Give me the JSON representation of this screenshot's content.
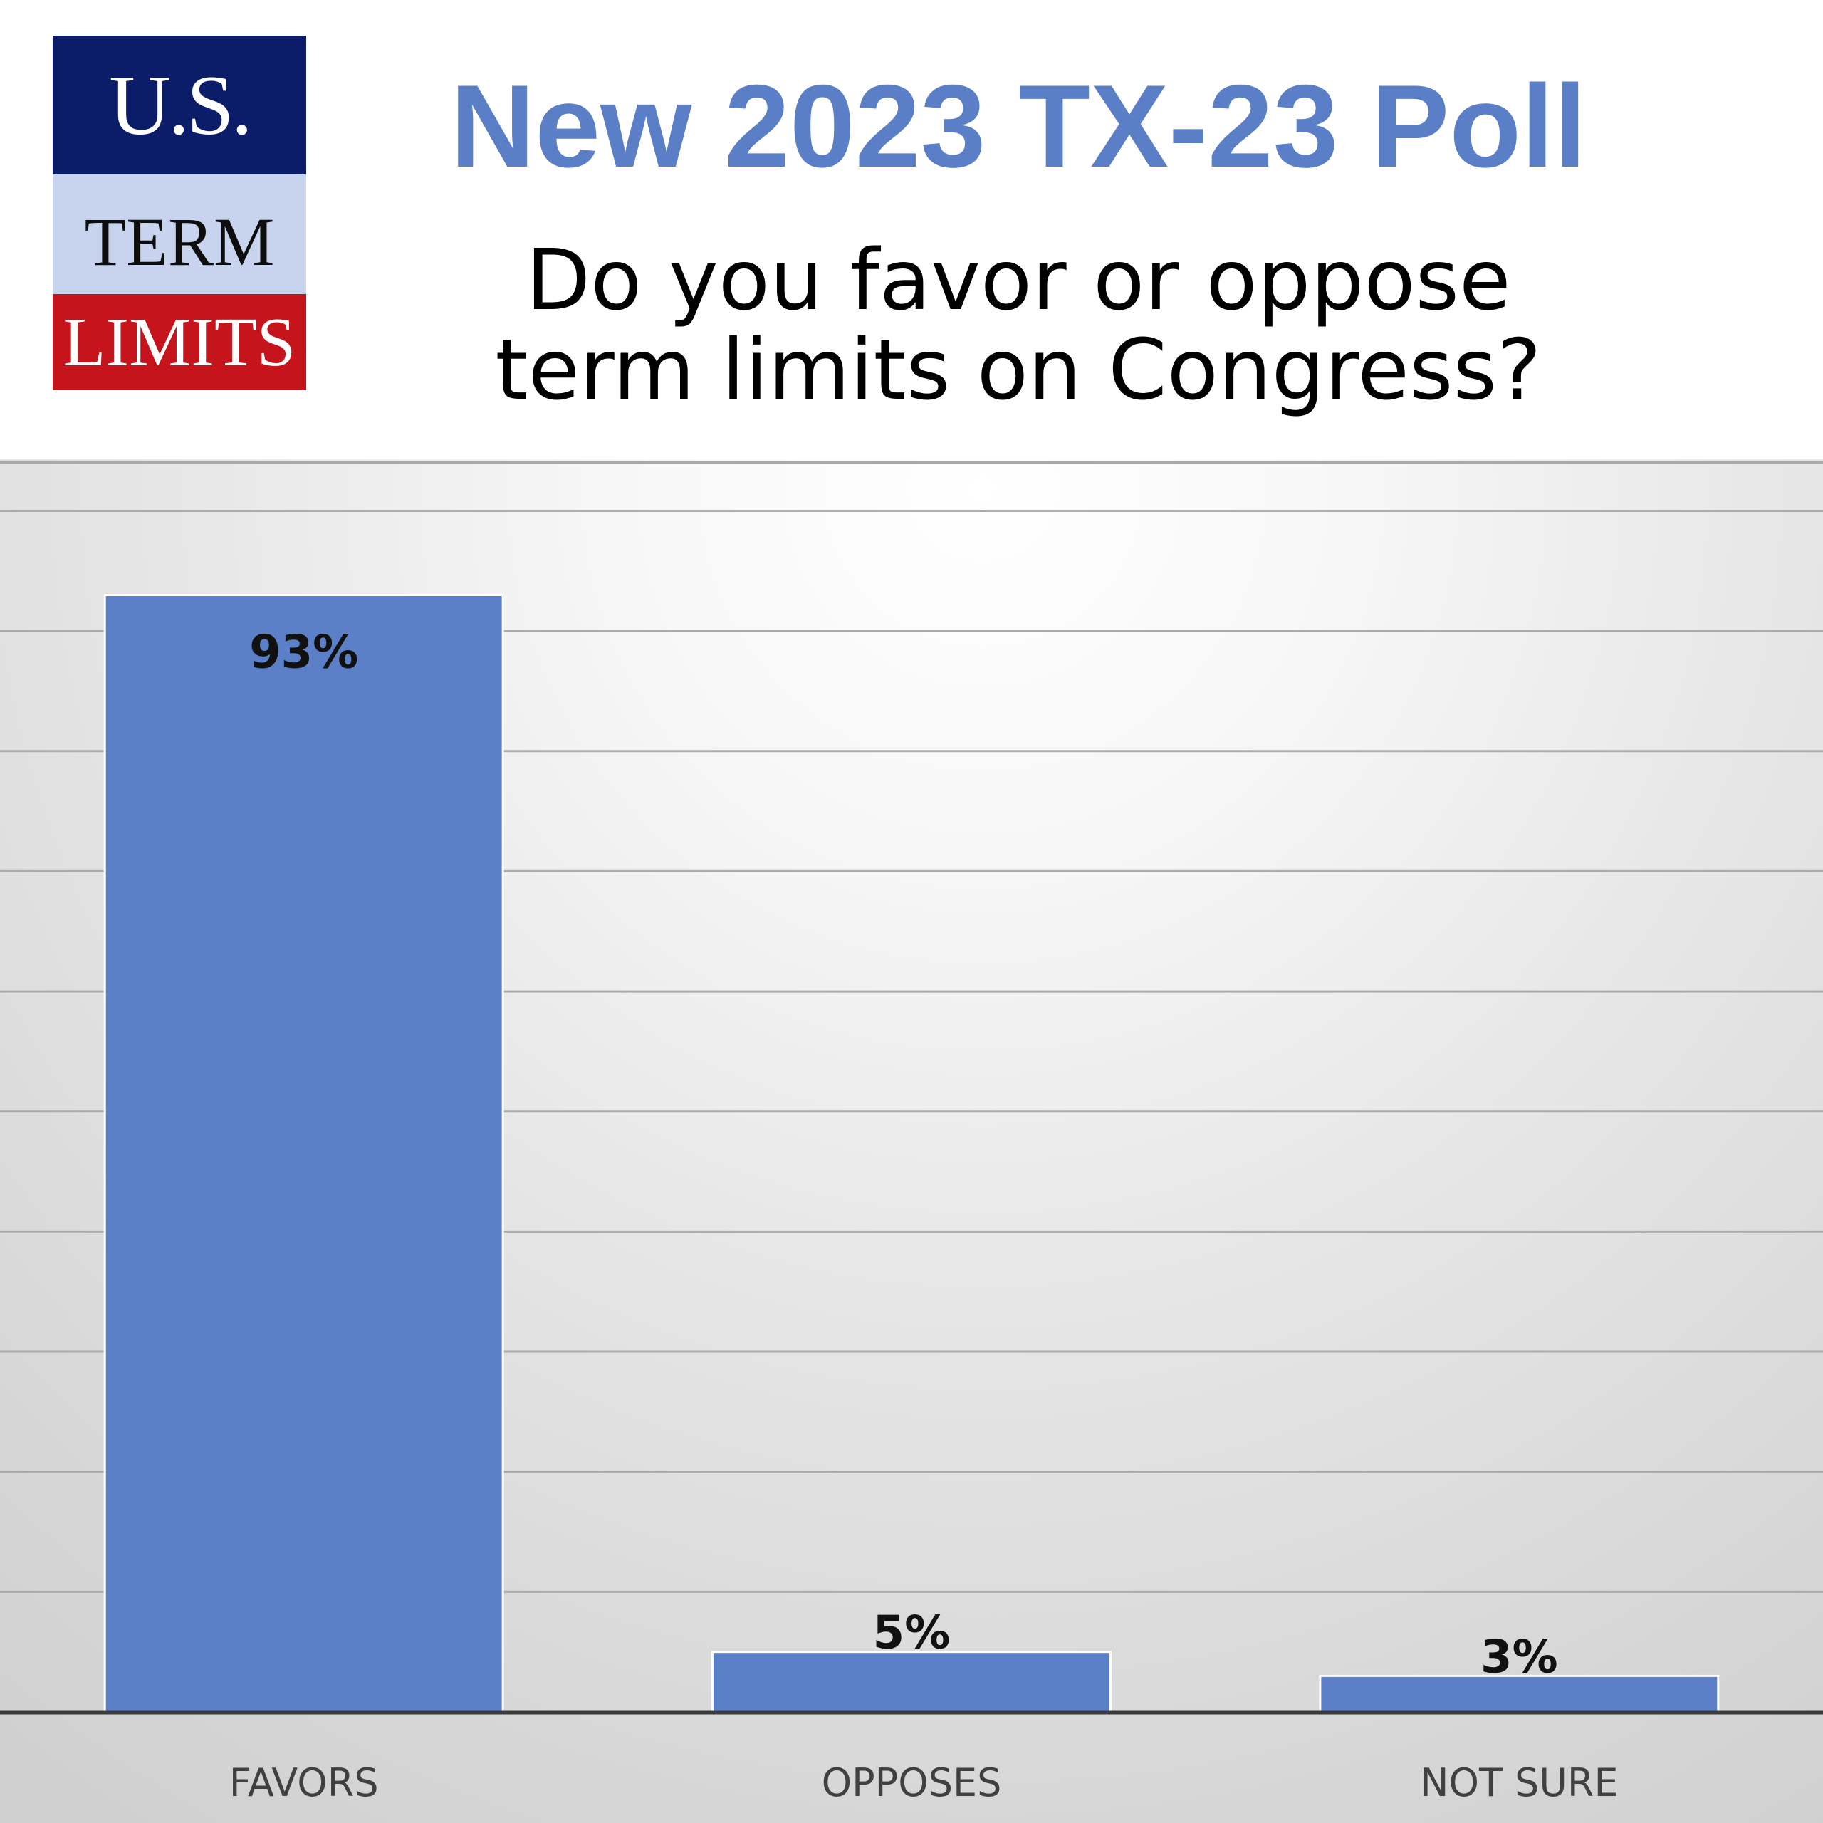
{
  "logo": {
    "line1": "U.S.",
    "line2": "TERM",
    "line3": "LIMITS",
    "colors": {
      "navy": "#0b1d68",
      "lightblue": "#c8d4ee",
      "red": "#c5141c"
    }
  },
  "header": {
    "title": "New 2023 TX-23 Poll",
    "subtitle_line1": "Do you favor or oppose",
    "subtitle_line2": "term limits on Congress?"
  },
  "chart_data": {
    "type": "bar",
    "categories": [
      "FAVORS",
      "OPPOSES",
      "NOT SURE"
    ],
    "values": [
      93,
      5,
      3
    ],
    "data_labels": [
      "93%",
      "5%",
      "3%"
    ],
    "ylim": [
      0,
      104
    ],
    "grid": true,
    "legend": "none",
    "bar_color": "#5b80c8",
    "title": "",
    "xlabel": "",
    "ylabel": ""
  }
}
